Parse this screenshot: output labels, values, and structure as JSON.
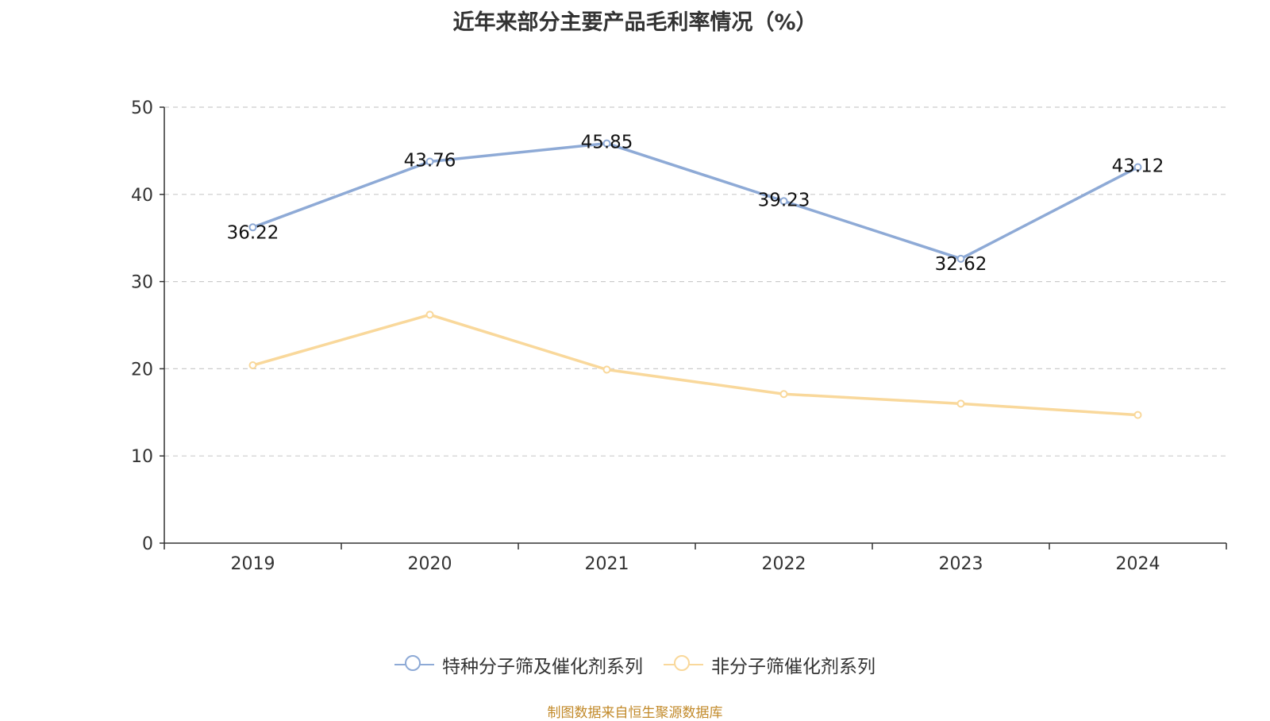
{
  "title": "近年来部分主要产品毛利率情况（%）",
  "source_note": "制图数据来自恒生聚源数据库",
  "colors": {
    "series1": "#8eaad6",
    "series2": "#f9d89b",
    "grid": "#cccccc",
    "axis": "#333333",
    "source": "#c28a2a"
  },
  "chart_data": {
    "type": "line",
    "title": "近年来部分主要产品毛利率情况（%）",
    "categories": [
      "2019",
      "2020",
      "2021",
      "2022",
      "2023",
      "2024"
    ],
    "ylim": [
      0,
      50
    ],
    "yticks": [
      0,
      10,
      20,
      30,
      40,
      50
    ],
    "grid": true,
    "legend_position": "bottom",
    "series": [
      {
        "name": "特种分子筛及催化剂系列",
        "values": [
          36.22,
          43.76,
          45.85,
          39.23,
          32.62,
          43.12
        ],
        "labels": [
          "36.22",
          "43.76",
          "45.85",
          "39.23",
          "32.62",
          "43.12"
        ],
        "color": "#8eaad6"
      },
      {
        "name": "非分子筛催化剂系列",
        "values": [
          20.4,
          26.2,
          19.9,
          17.1,
          16.0,
          14.7
        ],
        "color": "#f9d89b"
      }
    ]
  },
  "legend": [
    {
      "label": "特种分子筛及催化剂系列",
      "color": "#8eaad6"
    },
    {
      "label": "非分子筛催化剂系列",
      "color": "#f9d89b"
    }
  ]
}
